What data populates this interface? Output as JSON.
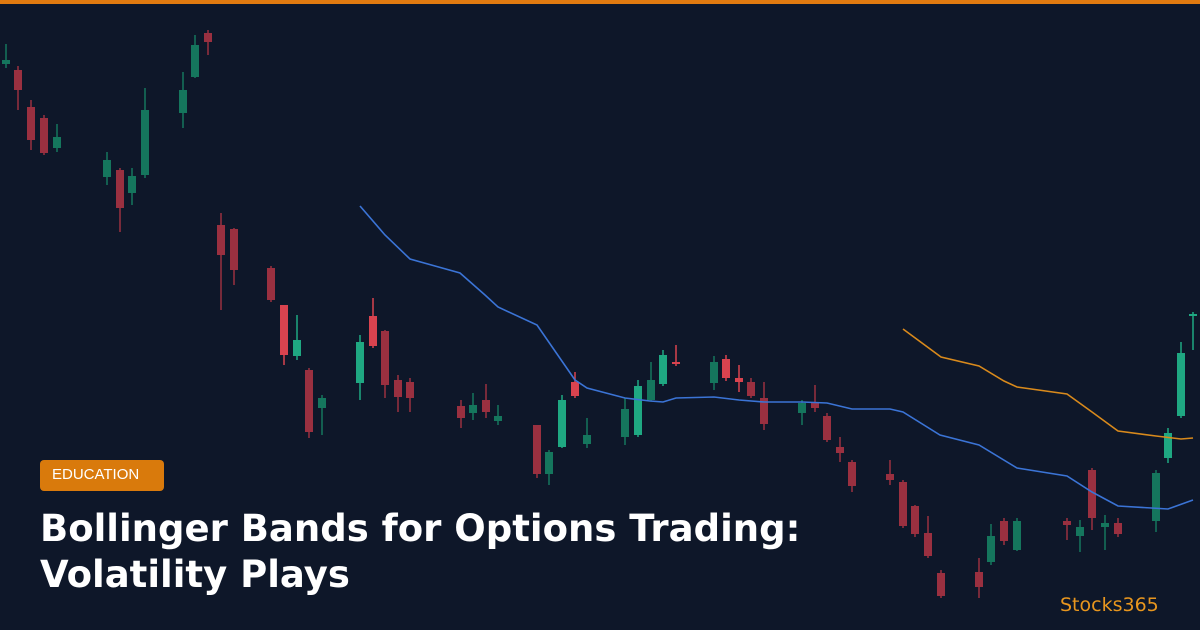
{
  "badge": "EDUCATION",
  "title": {
    "lines": [
      "Bollinger Bands for Options Trading:",
      "Volatility Plays"
    ]
  },
  "brand": "Stocks365"
}
